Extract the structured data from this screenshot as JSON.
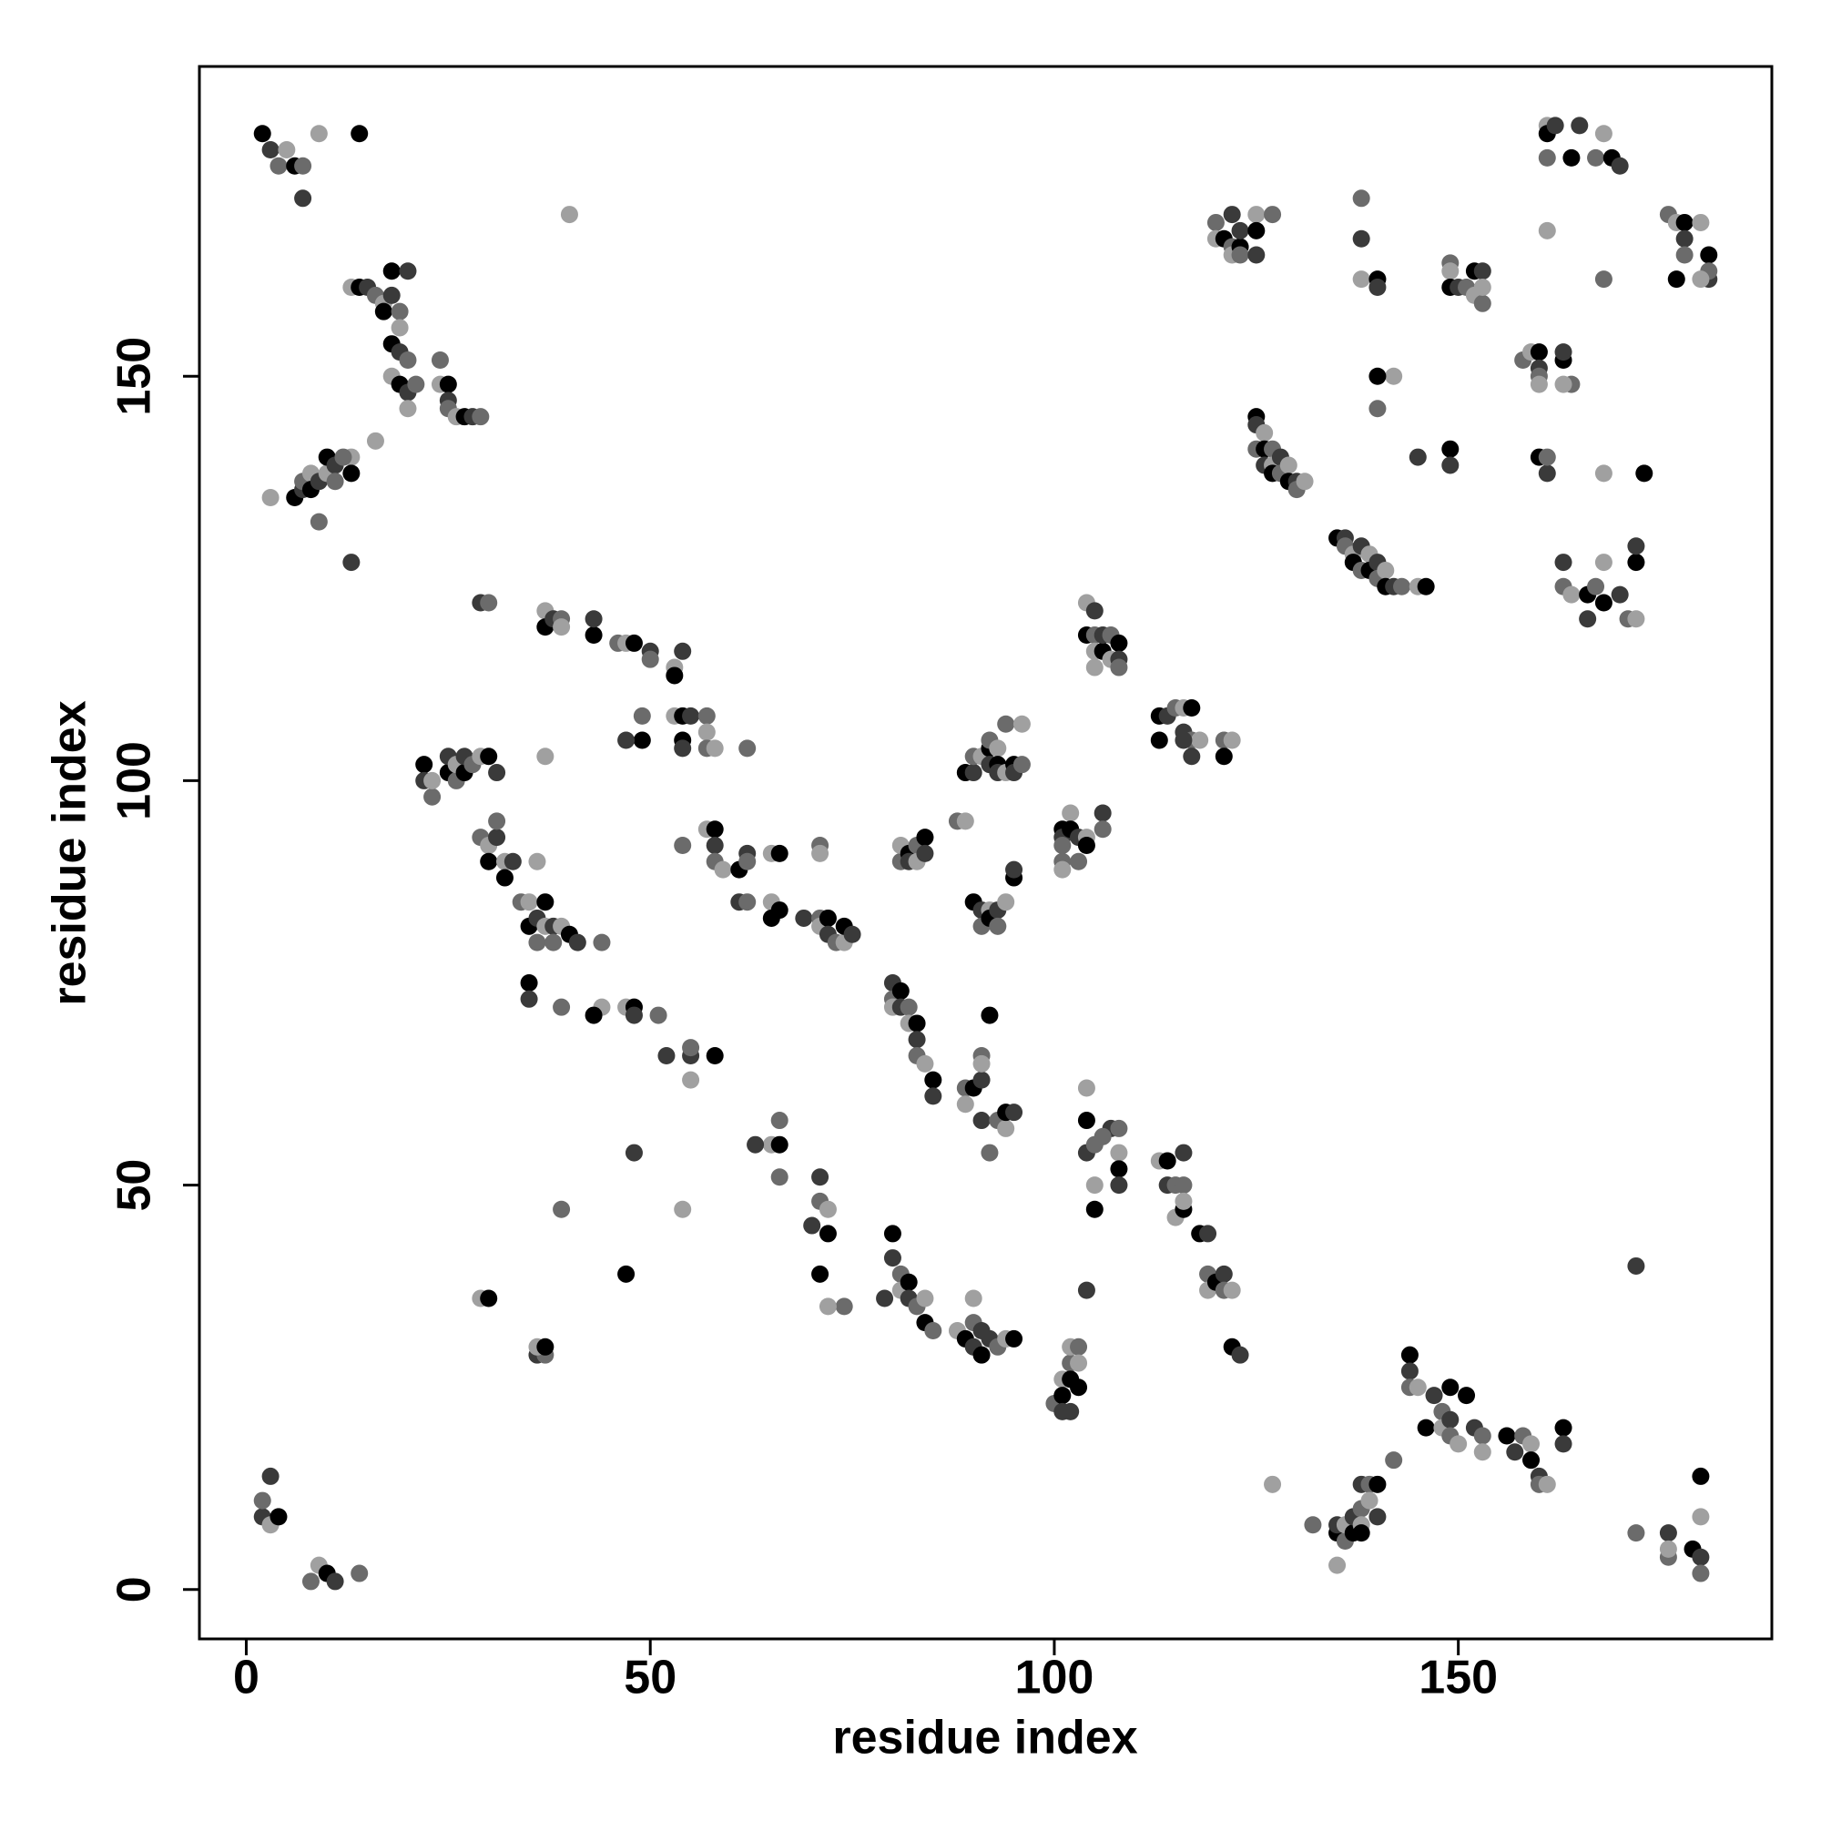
{
  "chart_data": {
    "type": "scatter",
    "x_label": "residue index",
    "y_label": "residue index",
    "xlim": [
      -5.8,
      188.8
    ],
    "ylim": [
      -6.1,
      188.3
    ],
    "xticks": [
      0,
      50,
      100,
      150
    ],
    "yticks": [
      0,
      50,
      100,
      150
    ],
    "colors": [
      "#000000",
      "#3a3a3a",
      "#6b6b6b",
      "#a0a0a0"
    ],
    "x": [
      2,
      3,
      4,
      5,
      6,
      7,
      7,
      9,
      14,
      2,
      2,
      3,
      4,
      3,
      8,
      9,
      10,
      11,
      14,
      13,
      14,
      15,
      16,
      17,
      17,
      18,
      19,
      19,
      18,
      19,
      20,
      18,
      19,
      20,
      21,
      20,
      18,
      20,
      24,
      24,
      25,
      25,
      25,
      26,
      27,
      28,
      29,
      16,
      144,
      144,
      144,
      145,
      146,
      147,
      148,
      148,
      149,
      149,
      149,
      150,
      151,
      152,
      153,
      153,
      156,
      157,
      158,
      159,
      159,
      160,
      160,
      161,
      163,
      163,
      142,
      3,
      6,
      7,
      7,
      8,
      8,
      9,
      9,
      10,
      10,
      11,
      11,
      13,
      13,
      13,
      12,
      135,
      135,
      135,
      136,
      136,
      137,
      137,
      138,
      138,
      138,
      138,
      139,
      139,
      140,
      140,
      132,
      127,
      22,
      22,
      23,
      23,
      25,
      25,
      26,
      26,
      27,
      27,
      28,
      29,
      30,
      31,
      100,
      101,
      101,
      101,
      102,
      102,
      102,
      102,
      103,
      103,
      103,
      104,
      29,
      30,
      30,
      31,
      31,
      32,
      32,
      33,
      34,
      35,
      35,
      36,
      36,
      37,
      37,
      38,
      38,
      39,
      40,
      41,
      44,
      36,
      35,
      35,
      39,
      37,
      80,
      80,
      81,
      81,
      82,
      82,
      83,
      84,
      84,
      79,
      85,
      88,
      89,
      90,
      90,
      90,
      91,
      92,
      93,
      94,
      95,
      91,
      74,
      72,
      71,
      70,
      71,
      72,
      72,
      71,
      66,
      65,
      66,
      63,
      66,
      29,
      30,
      36,
      37,
      36,
      37,
      29,
      30,
      37,
      37,
      38,
      39,
      39,
      43,
      43,
      46,
      47,
      48,
      50,
      50,
      53,
      53,
      54,
      49,
      53,
      54,
      55,
      57,
      57,
      54,
      54,
      57,
      58,
      49,
      47,
      62,
      104,
      104,
      105,
      105,
      105,
      106,
      106,
      107,
      107,
      108,
      108,
      108,
      105,
      113,
      114,
      115,
      116,
      117,
      116,
      117,
      118,
      113,
      116,
      121,
      122,
      121,
      117,
      54,
      57,
      58,
      58,
      58,
      59,
      61,
      62,
      62,
      65,
      66,
      61,
      62,
      65,
      65,
      69,
      71,
      71,
      72,
      72,
      73,
      74,
      74,
      75,
      71,
      71,
      66,
      80,
      80,
      80,
      81,
      81,
      82,
      82,
      83,
      83,
      83,
      84,
      85,
      85,
      89,
      89,
      90,
      91,
      91,
      91,
      92,
      91,
      93,
      94,
      94,
      95,
      92,
      47,
      48,
      48,
      51,
      44,
      43,
      48,
      39,
      54,
      47,
      55,
      55,
      55,
      58,
      52,
      81,
      81,
      82,
      82,
      83,
      83,
      84,
      84,
      88,
      89,
      89,
      90,
      90,
      91,
      92,
      92,
      92,
      93,
      93,
      93,
      94,
      94,
      95,
      95,
      96,
      96,
      90,
      91,
      91,
      92,
      92,
      93,
      93,
      94,
      95,
      95,
      101,
      101,
      101,
      101,
      101,
      102,
      102,
      103,
      103,
      104,
      104,
      106,
      106,
      104,
      104,
      104,
      105,
      105,
      105,
      107,
      108,
      108,
      108,
      108,
      106,
      113,
      114,
      114,
      115,
      115,
      116,
      116,
      116,
      116,
      118,
      119,
      119,
      119,
      120,
      121,
      121,
      122,
      122,
      123,
      120,
      120,
      121,
      122,
      122,
      122,
      123,
      123,
      123,
      125,
      125,
      125,
      127,
      40,
      125,
      125,
      125,
      126,
      126,
      126,
      127,
      127,
      127,
      128,
      128,
      129,
      129,
      130,
      130,
      131,
      135,
      136,
      136,
      137,
      137,
      138,
      138,
      139,
      139,
      140,
      140,
      141,
      141,
      142,
      143,
      145,
      146,
      145,
      140,
      142,
      140,
      138,
      138,
      138,
      140,
      140,
      149,
      149,
      149,
      150,
      151,
      152,
      152,
      153,
      153,
      153,
      149,
      149,
      158,
      159,
      160,
      160,
      160,
      160,
      163,
      163,
      164,
      163,
      160,
      161,
      161,
      161,
      161,
      162,
      161,
      161,
      164,
      165,
      167,
      168,
      169,
      170,
      168,
      168,
      173,
      163,
      163,
      164,
      166,
      166,
      167,
      168,
      168,
      170,
      171,
      172,
      172,
      172,
      176,
      177,
      178,
      178,
      178,
      180,
      181,
      181,
      181,
      180,
      177,
      176,
      176,
      176,
      179,
      180,
      180,
      180,
      180,
      172,
      172
    ],
    "values": [
      180,
      178,
      176,
      178,
      176,
      172,
      176,
      180,
      180,
      9,
      11,
      8,
      9,
      14,
      1,
      3,
      2,
      1,
      2,
      161,
      161,
      161,
      160,
      159,
      158,
      160,
      158,
      156,
      154,
      153,
      152,
      150,
      149,
      148,
      149,
      146,
      163,
      163,
      152,
      149,
      149,
      147,
      146,
      145,
      145,
      145,
      145,
      142,
      29,
      27,
      25,
      25,
      20,
      24,
      22,
      20,
      25,
      21,
      19,
      18,
      24,
      20,
      19,
      17,
      19,
      17,
      19,
      18,
      16,
      14,
      13,
      13,
      20,
      18,
      16,
      135,
      135,
      136,
      137,
      138,
      136,
      137,
      132,
      138,
      140,
      139,
      137,
      140,
      138,
      127,
      140,
      3,
      7,
      8,
      6,
      8,
      7,
      9,
      10,
      8,
      7,
      13,
      13,
      11,
      13,
      9,
      8,
      13,
      102,
      100,
      98,
      100,
      101,
      103,
      100,
      102,
      101,
      103,
      102,
      103,
      103,
      101,
      23,
      26,
      24,
      22,
      28,
      30,
      26,
      22,
      30,
      28,
      25,
      37,
      93,
      92,
      90,
      93,
      95,
      90,
      88,
      90,
      85,
      85,
      82,
      83,
      80,
      82,
      85,
      82,
      80,
      82,
      81,
      80,
      80,
      90,
      75,
      73,
      72,
      103,
      44,
      41,
      39,
      37,
      38,
      36,
      35,
      36,
      33,
      36,
      32,
      32,
      31,
      30,
      33,
      36,
      29,
      31,
      30,
      31,
      31,
      32,
      35,
      35,
      39,
      45,
      48,
      47,
      44,
      51,
      58,
      55,
      55,
      55,
      51,
      36,
      36,
      29,
      29,
      30,
      30,
      122,
      122,
      121,
      119,
      120,
      120,
      119,
      118,
      120,
      117,
      117,
      117,
      116,
      115,
      114,
      113,
      116,
      108,
      108,
      108,
      108,
      108,
      106,
      105,
      104,
      104,
      104,
      105,
      105,
      104,
      122,
      118,
      121,
      118,
      116,
      116,
      118,
      118,
      115,
      117,
      115,
      114,
      114,
      108,
      108,
      109,
      109,
      109,
      106,
      105,
      105,
      105,
      105,
      105,
      105,
      103,
      103,
      92,
      94,
      94,
      92,
      90,
      89,
      89,
      91,
      90,
      91,
      91,
      85,
      85,
      85,
      83,
      83,
      83,
      82,
      83,
      81,
      80,
      80,
      82,
      81,
      92,
      91,
      84,
      75,
      73,
      72,
      74,
      72,
      72,
      70,
      70,
      68,
      66,
      65,
      63,
      61,
      62,
      60,
      62,
      63,
      66,
      65,
      71,
      58,
      58,
      57,
      59,
      59,
      54,
      72,
      72,
      71,
      71,
      72,
      71,
      54,
      47,
      47,
      39,
      66,
      67,
      63,
      66,
      66,
      90,
      92,
      91,
      90,
      92,
      90,
      93,
      91,
      95,
      95,
      101,
      101,
      103,
      103,
      104,
      102,
      105,
      104,
      102,
      101,
      107,
      101,
      102,
      101,
      102,
      107,
      85,
      84,
      82,
      84,
      83,
      84,
      82,
      85,
      88,
      89,
      90,
      89,
      94,
      93,
      92,
      96,
      94,
      93,
      90,
      93,
      92,
      96,
      94,
      62,
      58,
      54,
      55,
      50,
      47,
      57,
      57,
      54,
      52,
      50,
      56,
      53,
      53,
      50,
      50,
      46,
      47,
      54,
      50,
      48,
      44,
      44,
      39,
      37,
      38,
      39,
      37,
      37,
      30,
      29,
      169,
      167,
      167,
      170,
      166,
      165,
      166,
      168,
      165,
      170,
      168,
      165,
      170,
      170,
      145,
      144,
      141,
      143,
      141,
      139,
      141,
      139,
      138,
      140,
      138,
      139,
      137,
      137,
      136,
      137,
      130,
      130,
      129,
      128,
      127,
      129,
      126,
      128,
      126,
      127,
      125,
      126,
      124,
      124,
      124,
      124,
      124,
      140,
      146,
      150,
      150,
      167,
      172,
      162,
      162,
      161,
      164,
      163,
      161,
      161,
      161,
      160,
      163,
      163,
      159,
      161,
      141,
      139,
      152,
      153,
      153,
      151,
      150,
      149,
      152,
      153,
      149,
      149,
      140,
      138,
      140,
      181,
      180,
      181,
      177,
      168,
      177,
      181,
      177,
      180,
      177,
      176,
      162,
      138,
      138,
      127,
      124,
      123,
      123,
      120,
      124,
      127,
      122,
      123,
      120,
      120,
      127,
      129,
      170,
      169,
      169,
      167,
      165,
      169,
      165,
      162,
      163,
      162,
      162,
      7,
      4,
      5,
      5,
      4,
      2,
      9,
      14,
      40,
      7
    ]
  }
}
